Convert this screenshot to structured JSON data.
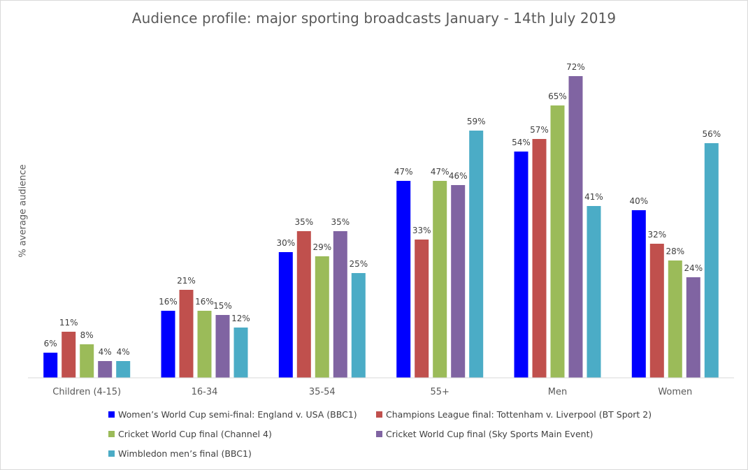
{
  "chart_data": {
    "type": "bar",
    "title": "Audience profile: major sporting broadcasts January - 14th July 2019",
    "xlabel": "",
    "ylabel": "% average audience",
    "ylim": [
      0,
      75
    ],
    "grid": false,
    "legend_position": "bottom",
    "categories": [
      "Children (4-15)",
      "16-34",
      "35-54",
      "55+",
      "Men",
      "Women"
    ],
    "series": [
      {
        "name": "Women’s World Cup semi-final: England v. USA  (BBC1)",
        "color": "#0000ff",
        "values": [
          6,
          16,
          30,
          47,
          54,
          40
        ],
        "labels": [
          "6%",
          "16%",
          "30%",
          "47%",
          "54%",
          "40%"
        ]
      },
      {
        "name": "Champions League final: Tottenham v. Liverpool (BT Sport 2)",
        "color": "#c0504d",
        "values": [
          11,
          21,
          35,
          33,
          57,
          32
        ],
        "labels": [
          "11%",
          "21%",
          "35%",
          "33%",
          "57%",
          "32%"
        ]
      },
      {
        "name": "Cricket World Cup final (Channel 4)",
        "color": "#9bbb59",
        "values": [
          8,
          16,
          29,
          47,
          65,
          28
        ],
        "labels": [
          "8%",
          "16%",
          "29%",
          "47%",
          "65%",
          "28%"
        ]
      },
      {
        "name": "Cricket World Cup final (Sky Sports Main Event)",
        "color": "#8064a2",
        "values": [
          4,
          15,
          35,
          46,
          72,
          24
        ],
        "labels": [
          "4%",
          "15%",
          "35%",
          "46%",
          "72%",
          "24%"
        ]
      },
      {
        "name": "Wimbledon men’s final (BBC1)",
        "color": "#4bacc6",
        "values": [
          4,
          12,
          25,
          59,
          41,
          56
        ],
        "labels": [
          "4%",
          "12%",
          "25%",
          "59%",
          "41%",
          "56%"
        ]
      }
    ]
  }
}
